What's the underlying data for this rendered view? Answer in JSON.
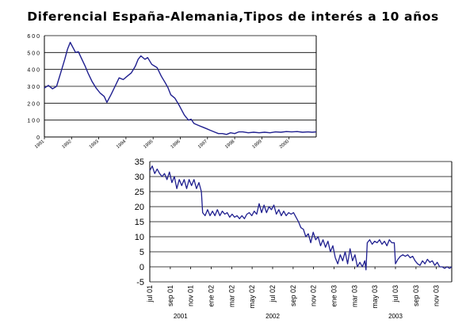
{
  "title": "Diferencial España-Alemania,Tipos de interés a 10 años",
  "colors": {
    "line": "#1f1f8f",
    "grid": "#000000",
    "axis": "#000000"
  },
  "chart_data": [
    {
      "type": "line",
      "title": "Diferencial España-Alemania,Tipos de interés a 10 años",
      "xlabel": "",
      "ylabel": "",
      "grid": true,
      "ylim": [
        0,
        600
      ],
      "xlim": [
        1991,
        2001
      ],
      "yticks": [
        "0",
        "1 0 0",
        "2 0 0",
        "3 0 0",
        "4 0 0",
        "5 0 0",
        "6 0 0"
      ],
      "xticks": [
        "1991",
        "1992",
        "1993",
        "1994",
        "1995",
        "1996",
        "1997",
        "1998",
        "1999",
        "2000"
      ],
      "series": [
        {
          "values": [
            [
              1991.0,
              290
            ],
            [
              1991.15,
              305
            ],
            [
              1991.3,
              285
            ],
            [
              1991.45,
              300
            ],
            [
              1991.6,
              380
            ],
            [
              1991.75,
              460
            ],
            [
              1991.85,
              520
            ],
            [
              1991.95,
              560
            ],
            [
              1992.05,
              530
            ],
            [
              1992.15,
              500
            ],
            [
              1992.25,
              505
            ],
            [
              1992.35,
              470
            ],
            [
              1992.5,
              420
            ],
            [
              1992.6,
              380
            ],
            [
              1992.75,
              330
            ],
            [
              1992.9,
              290
            ],
            [
              1993.05,
              260
            ],
            [
              1993.2,
              240
            ],
            [
              1993.3,
              205
            ],
            [
              1993.45,
              250
            ],
            [
              1993.6,
              300
            ],
            [
              1993.75,
              350
            ],
            [
              1993.9,
              340
            ],
            [
              1994.05,
              360
            ],
            [
              1994.2,
              380
            ],
            [
              1994.35,
              420
            ],
            [
              1994.45,
              460
            ],
            [
              1994.55,
              480
            ],
            [
              1994.7,
              460
            ],
            [
              1994.8,
              470
            ],
            [
              1994.95,
              430
            ],
            [
              1995.05,
              420
            ],
            [
              1995.15,
              410
            ],
            [
              1995.3,
              360
            ],
            [
              1995.45,
              320
            ],
            [
              1995.55,
              290
            ],
            [
              1995.65,
              250
            ],
            [
              1995.8,
              230
            ],
            [
              1995.95,
              190
            ],
            [
              1996.05,
              160
            ],
            [
              1996.15,
              130
            ],
            [
              1996.3,
              100
            ],
            [
              1996.4,
              105
            ],
            [
              1996.5,
              80
            ],
            [
              1996.65,
              70
            ],
            [
              1996.8,
              60
            ],
            [
              1996.95,
              50
            ],
            [
              1997.1,
              40
            ],
            [
              1997.25,
              30
            ],
            [
              1997.4,
              20
            ],
            [
              1997.55,
              20
            ],
            [
              1997.7,
              15
            ],
            [
              1997.85,
              25
            ],
            [
              1998.0,
              20
            ],
            [
              1998.15,
              30
            ],
            [
              1998.3,
              30
            ],
            [
              1998.5,
              25
            ],
            [
              1998.7,
              28
            ],
            [
              1998.9,
              25
            ],
            [
              1999.1,
              28
            ],
            [
              1999.3,
              25
            ],
            [
              1999.5,
              30
            ],
            [
              1999.7,
              28
            ],
            [
              1999.9,
              32
            ],
            [
              2000.1,
              30
            ],
            [
              2000.3,
              32
            ],
            [
              2000.5,
              28
            ],
            [
              2000.7,
              30
            ],
            [
              2000.85,
              28
            ],
            [
              2001.0,
              30
            ]
          ]
        }
      ]
    },
    {
      "type": "line",
      "title": "",
      "xlabel": "",
      "ylabel": "",
      "grid": true,
      "ylim": [
        -5,
        35
      ],
      "xlim": [
        2001.5,
        2003.958
      ],
      "yticks": [
        "-5",
        "0",
        "5",
        "10",
        "15",
        "20",
        "25",
        "30",
        "35"
      ],
      "xticks": [
        {
          "label": "jul 01",
          "x": 2001.5
        },
        {
          "label": "sep 01",
          "x": 2001.667
        },
        {
          "label": "nov 01",
          "x": 2001.833
        },
        {
          "label": "ene 02",
          "x": 2002.0
        },
        {
          "label": "mar 02",
          "x": 2002.167
        },
        {
          "label": "may 02",
          "x": 2002.333
        },
        {
          "label": "jul 02",
          "x": 2002.5
        },
        {
          "label": "sep 02",
          "x": 2002.667
        },
        {
          "label": "nov 02",
          "x": 2002.833
        },
        {
          "label": "ene 03",
          "x": 2003.0
        },
        {
          "label": "mar 03",
          "x": 2003.167
        },
        {
          "label": "may 03",
          "x": 2003.333
        },
        {
          "label": "jul 03",
          "x": 2003.5
        },
        {
          "label": "sep 03",
          "x": 2003.667
        },
        {
          "label": "nov 03",
          "x": 2003.833
        }
      ],
      "year_labels": [
        {
          "label": "2001",
          "x": 2001.75
        },
        {
          "label": "2002",
          "x": 2002.5
        },
        {
          "label": "2003",
          "x": 2003.5
        }
      ],
      "series": [
        {
          "values": [
            [
              2001.5,
              32
            ],
            [
              2001.52,
              33.5
            ],
            [
              2001.54,
              31
            ],
            [
              2001.56,
              32.5
            ],
            [
              2001.58,
              31
            ],
            [
              2001.6,
              30
            ],
            [
              2001.62,
              31
            ],
            [
              2001.64,
              29
            ],
            [
              2001.66,
              31.5
            ],
            [
              2001.68,
              28
            ],
            [
              2001.7,
              30
            ],
            [
              2001.72,
              26
            ],
            [
              2001.74,
              29
            ],
            [
              2001.76,
              27
            ],
            [
              2001.78,
              29
            ],
            [
              2001.8,
              26
            ],
            [
              2001.82,
              29
            ],
            [
              2001.84,
              27
            ],
            [
              2001.86,
              29
            ],
            [
              2001.88,
              26
            ],
            [
              2001.9,
              28
            ],
            [
              2001.92,
              25
            ],
            [
              2001.93,
              18
            ],
            [
              2001.95,
              17
            ],
            [
              2001.97,
              19
            ],
            [
              2001.99,
              17
            ],
            [
              2002.01,
              18.5
            ],
            [
              2002.03,
              17
            ],
            [
              2002.05,
              19
            ],
            [
              2002.07,
              17
            ],
            [
              2002.09,
              18.5
            ],
            [
              2002.11,
              17.5
            ],
            [
              2002.13,
              18
            ],
            [
              2002.15,
              16.5
            ],
            [
              2002.17,
              17.5
            ],
            [
              2002.19,
              16.5
            ],
            [
              2002.21,
              17
            ],
            [
              2002.23,
              16
            ],
            [
              2002.25,
              17
            ],
            [
              2002.27,
              16
            ],
            [
              2002.29,
              17.5
            ],
            [
              2002.31,
              18
            ],
            [
              2002.33,
              17
            ],
            [
              2002.35,
              18.5
            ],
            [
              2002.37,
              17.5
            ],
            [
              2002.39,
              21
            ],
            [
              2002.41,
              18
            ],
            [
              2002.43,
              20.5
            ],
            [
              2002.45,
              18
            ],
            [
              2002.47,
              20
            ],
            [
              2002.49,
              19
            ],
            [
              2002.51,
              20.5
            ],
            [
              2002.53,
              17.5
            ],
            [
              2002.55,
              19
            ],
            [
              2002.57,
              17
            ],
            [
              2002.59,
              18.5
            ],
            [
              2002.61,
              17
            ],
            [
              2002.63,
              18
            ],
            [
              2002.65,
              17.5
            ],
            [
              2002.67,
              18
            ],
            [
              2002.69,
              16.5
            ],
            [
              2002.71,
              15
            ],
            [
              2002.73,
              13
            ],
            [
              2002.75,
              12.5
            ],
            [
              2002.77,
              10
            ],
            [
              2002.79,
              11
            ],
            [
              2002.81,
              8
            ],
            [
              2002.83,
              11.5
            ],
            [
              2002.85,
              9
            ],
            [
              2002.87,
              10
            ],
            [
              2002.89,
              7
            ],
            [
              2002.91,
              9
            ],
            [
              2002.93,
              6.5
            ],
            [
              2002.95,
              8.5
            ],
            [
              2002.97,
              5
            ],
            [
              2002.99,
              7
            ],
            [
              2003.01,
              3
            ],
            [
              2003.03,
              1
            ],
            [
              2003.05,
              4
            ],
            [
              2003.07,
              2
            ],
            [
              2003.09,
              5
            ],
            [
              2003.11,
              1
            ],
            [
              2003.13,
              6
            ],
            [
              2003.15,
              2
            ],
            [
              2003.17,
              4
            ],
            [
              2003.19,
              0
            ],
            [
              2003.21,
              1.5
            ],
            [
              2003.23,
              0
            ],
            [
              2003.25,
              2
            ],
            [
              2003.26,
              -1
            ],
            [
              2003.27,
              8
            ],
            [
              2003.29,
              9
            ],
            [
              2003.31,
              7.5
            ],
            [
              2003.33,
              8.5
            ],
            [
              2003.35,
              8
            ],
            [
              2003.37,
              9
            ],
            [
              2003.39,
              7.5
            ],
            [
              2003.41,
              8.5
            ],
            [
              2003.43,
              7
            ],
            [
              2003.45,
              9
            ],
            [
              2003.47,
              8
            ],
            [
              2003.49,
              8
            ],
            [
              2003.5,
              1
            ],
            [
              2003.52,
              2.5
            ],
            [
              2003.54,
              3.5
            ],
            [
              2003.56,
              4
            ],
            [
              2003.58,
              3.5
            ],
            [
              2003.6,
              4
            ],
            [
              2003.62,
              3
            ],
            [
              2003.64,
              3.5
            ],
            [
              2003.66,
              2
            ],
            [
              2003.68,
              1
            ],
            [
              2003.7,
              0.5
            ],
            [
              2003.72,
              2
            ],
            [
              2003.74,
              1
            ],
            [
              2003.76,
              2.5
            ],
            [
              2003.78,
              1.5
            ],
            [
              2003.8,
              2
            ],
            [
              2003.82,
              0.5
            ],
            [
              2003.84,
              1.5
            ],
            [
              2003.86,
              0
            ],
            [
              2003.88,
              0
            ],
            [
              2003.9,
              -0.5
            ],
            [
              2003.92,
              0
            ],
            [
              2003.94,
              -0.5
            ],
            [
              2003.958,
              0
            ]
          ]
        }
      ]
    }
  ]
}
